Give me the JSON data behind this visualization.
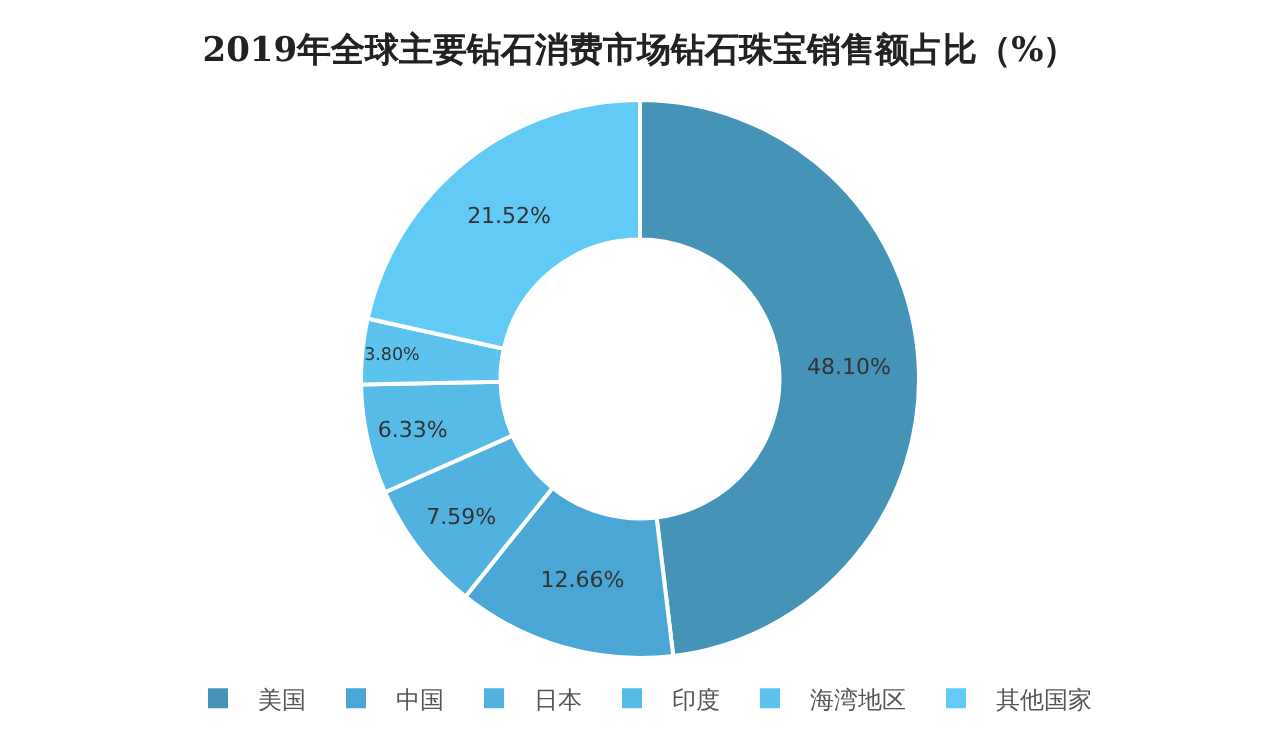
{
  "chart_data": {
    "type": "donut",
    "title": "2019年全球主要钻石消费市场钻石珠宝销售额占比（%）",
    "categories": [
      "美国",
      "中国",
      "日本",
      "印度",
      "海湾地区",
      "其他国家"
    ],
    "values": [
      48.1,
      12.66,
      7.59,
      6.33,
      3.8,
      21.52
    ],
    "value_labels": [
      "48.10%",
      "12.66%",
      "7.59%",
      "6.33%",
      "3.80%",
      "21.52%"
    ],
    "colors": [
      "#4594b8",
      "#4aa6d4",
      "#51b2e0",
      "#57bbe8",
      "#5cc3ef",
      "#62cbf5"
    ],
    "legend": "bottom"
  }
}
